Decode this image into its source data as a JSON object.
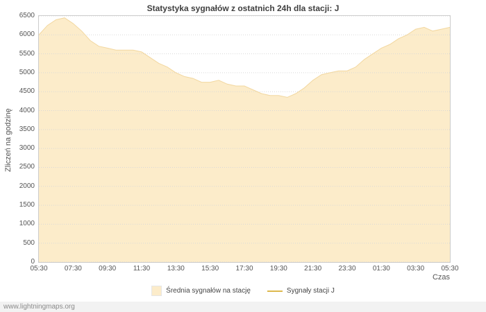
{
  "title": "Statystyka sygnałów z ostatnich 24h dla stacji: J",
  "axes": {
    "ylabel": "Zliczeń na godzinę",
    "xlabel": "Czas"
  },
  "watermark": "www.lightningmaps.org",
  "legend": [
    {
      "label": "Średnia sygnałów na stację",
      "marker": "area"
    },
    {
      "label": "Sygnały stacji J",
      "marker": "line"
    }
  ],
  "colors": {
    "area_fill": "#fcecca",
    "area_edge": "#f2d79f",
    "station_line": "#ddb84d",
    "grid": "#d8d8d8",
    "plot_border": "#cccccc",
    "text": "#545454"
  },
  "chart_data": {
    "type": "area",
    "title": "Statystyka sygnałów z ostatnich 24h dla stacji: J",
    "xlabel": "Czas",
    "ylabel": "Zliczeń na godzinę",
    "ylim": [
      0,
      6500
    ],
    "ytick_step": 500,
    "grid": true,
    "legend_position": "bottom",
    "x_ticks": [
      "05:30",
      "07:30",
      "09:30",
      "11:30",
      "13:30",
      "15:30",
      "17:30",
      "19:30",
      "21:30",
      "23:30",
      "01:30",
      "03:30",
      "05:30"
    ],
    "x": [
      "05:30",
      "06:00",
      "06:30",
      "07:00",
      "07:30",
      "08:00",
      "08:30",
      "09:00",
      "09:30",
      "10:00",
      "10:30",
      "11:00",
      "11:30",
      "12:00",
      "12:30",
      "13:00",
      "13:30",
      "14:00",
      "14:30",
      "15:00",
      "15:30",
      "16:00",
      "16:30",
      "17:00",
      "17:30",
      "18:00",
      "18:30",
      "19:00",
      "19:30",
      "20:00",
      "20:30",
      "21:00",
      "21:30",
      "22:00",
      "22:30",
      "23:00",
      "23:30",
      "00:00",
      "00:30",
      "01:00",
      "01:30",
      "02:00",
      "02:30",
      "03:00",
      "03:30",
      "04:00",
      "04:30",
      "05:00",
      "05:30"
    ],
    "series": [
      {
        "name": "Średnia sygnałów na stację",
        "type": "area",
        "values": [
          6000,
          6250,
          6400,
          6450,
          6300,
          6100,
          5850,
          5700,
          5650,
          5600,
          5600,
          5600,
          5550,
          5400,
          5250,
          5150,
          5000,
          4900,
          4850,
          4750,
          4750,
          4800,
          4700,
          4650,
          4650,
          4550,
          4450,
          4400,
          4400,
          4350,
          4450,
          4600,
          4800,
          4950,
          5000,
          5050,
          5050,
          5150,
          5350,
          5500,
          5650,
          5750,
          5900,
          6000,
          6150,
          6200,
          6100,
          6150,
          6200
        ]
      },
      {
        "name": "Sygnały stacji J",
        "type": "line",
        "values": []
      }
    ]
  }
}
